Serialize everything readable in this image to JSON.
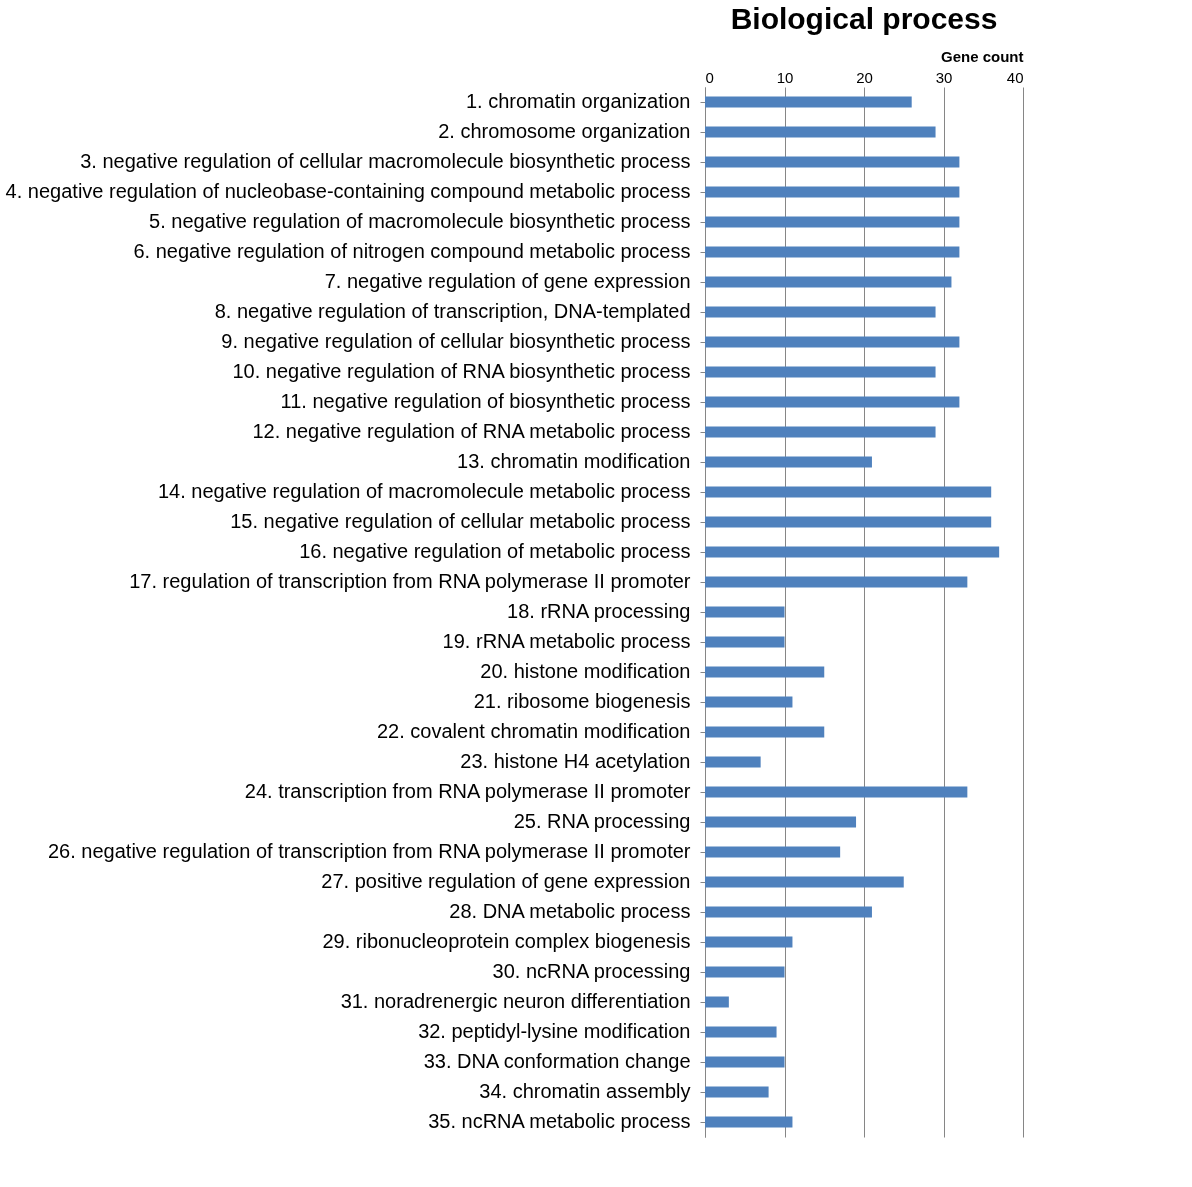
{
  "chart_data": {
    "type": "bar",
    "orientation": "horizontal",
    "title": "Biological process",
    "xlabel": "Gene count",
    "categories": [
      "1. chromatin organization",
      "2. chromosome organization",
      "3. negative regulation of cellular macromolecule biosynthetic process",
      "4. negative regulation of nucleobase-containing compound metabolic process",
      "5. negative regulation of macromolecule biosynthetic process",
      "6. negative regulation of nitrogen compound metabolic process",
      "7. negative regulation of gene expression",
      "8. negative regulation of transcription, DNA-templated",
      "9. negative regulation of cellular biosynthetic process",
      "10. negative regulation of RNA biosynthetic process",
      "11. negative regulation of biosynthetic process",
      "12. negative regulation of RNA metabolic process",
      "13. chromatin modification",
      "14. negative regulation of macromolecule metabolic process",
      "15. negative regulation of cellular metabolic process",
      "16. negative regulation of metabolic process",
      "17. regulation of transcription from RNA polymerase II promoter",
      "18. rRNA processing",
      "19. rRNA metabolic process",
      "20. histone modification",
      "21. ribosome biogenesis",
      "22. covalent chromatin modification",
      "23. histone H4 acetylation",
      "24. transcription from RNA polymerase II promoter",
      "25. RNA processing",
      "26. negative regulation of transcription from RNA polymerase II promoter",
      "27. positive regulation of gene expression",
      "28. DNA metabolic process",
      "29. ribonucleoprotein complex biogenesis",
      "30. ncRNA processing",
      "31. noradrenergic neuron differentiation",
      "32. peptidyl-lysine modification",
      "33. DNA conformation change",
      "34. chromatin assembly",
      "35. ncRNA metabolic process"
    ],
    "values": [
      26,
      29,
      32,
      32,
      32,
      32,
      31,
      29,
      32,
      29,
      32,
      29,
      21,
      36,
      36,
      37,
      33,
      10,
      10,
      15,
      11,
      15,
      7,
      33,
      19,
      17,
      25,
      21,
      11,
      10,
      3,
      9,
      10,
      8,
      11
    ],
    "color": "#4f81bd",
    "xlim": [
      0,
      40
    ],
    "xticks": [
      0,
      10,
      20,
      30,
      40
    ],
    "grid": "x"
  }
}
